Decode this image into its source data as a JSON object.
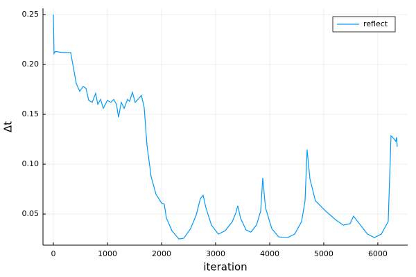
{
  "chart_data": {
    "type": "line",
    "x_label": "iteration",
    "y_label": "Δt",
    "x": [
      0,
      13,
      38,
      167,
      320,
      423,
      487,
      551,
      603,
      654,
      718,
      782,
      821,
      872,
      923,
      1000,
      1064,
      1115,
      1167,
      1205,
      1256,
      1308,
      1372,
      1410,
      1462,
      1513,
      1564,
      1628,
      1679,
      1731,
      1808,
      1897,
      2000,
      2051,
      2090,
      2192,
      2320,
      2410,
      2538,
      2641,
      2718,
      2769,
      2821,
      2923,
      3051,
      3179,
      3308,
      3372,
      3410,
      3462,
      3564,
      3654,
      3756,
      3833,
      3872,
      3923,
      4038,
      4167,
      4333,
      4462,
      4590,
      4654,
      4692,
      4744,
      4846,
      5038,
      5231,
      5359,
      5487,
      5551,
      5679,
      5808,
      5936,
      6064,
      6192,
      6244,
      6295,
      6333,
      6346,
      6359
    ],
    "series": [
      {
        "name": "reflect",
        "color": "#009af9",
        "values": [
          0.25,
          0.211,
          0.213,
          0.212,
          0.212,
          0.181,
          0.173,
          0.178,
          0.176,
          0.164,
          0.162,
          0.171,
          0.16,
          0.165,
          0.156,
          0.164,
          0.162,
          0.165,
          0.16,
          0.147,
          0.162,
          0.156,
          0.165,
          0.163,
          0.172,
          0.162,
          0.165,
          0.169,
          0.157,
          0.119,
          0.0875,
          0.07,
          0.061,
          0.06,
          0.046,
          0.0333,
          0.025,
          0.0257,
          0.0354,
          0.049,
          0.0653,
          0.0688,
          0.0563,
          0.0389,
          0.0299,
          0.0333,
          0.0424,
          0.0507,
          0.0583,
          0.0458,
          0.034,
          0.0319,
          0.0389,
          0.0528,
          0.0861,
          0.0563,
          0.0354,
          0.0271,
          0.0264,
          0.0299,
          0.0424,
          0.0632,
          0.1146,
          0.0854,
          0.0632,
          0.0528,
          0.0438,
          0.0389,
          0.0403,
          0.0479,
          0.0389,
          0.0299,
          0.0264,
          0.0299,
          0.0424,
          0.1285,
          0.1257,
          0.1229,
          0.127,
          0.1174
        ]
      }
    ],
    "xlim": [
      -192,
      6552
    ],
    "ylim": [
      0.0188,
      0.2563
    ],
    "xticks": [
      0,
      1000,
      2000,
      3000,
      4000,
      5000,
      6000
    ],
    "yticks": [
      {
        "value": 0.05,
        "label": "0.05"
      },
      {
        "value": 0.1,
        "label": "0.10"
      },
      {
        "value": 0.15,
        "label": "0.15"
      },
      {
        "value": 0.2,
        "label": "0.20"
      },
      {
        "value": 0.25,
        "label": "0.25"
      }
    ],
    "grid": true,
    "legend": "top-right"
  }
}
